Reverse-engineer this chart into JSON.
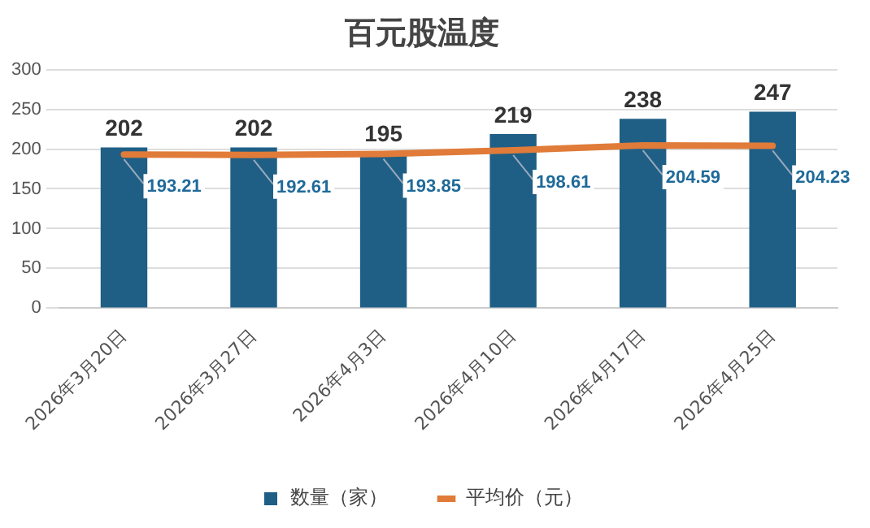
{
  "chart_data": {
    "type": "bar",
    "title": "百元股温度",
    "categories": [
      "2026年3月20日",
      "2026年3月27日",
      "2026年4月3日",
      "2026年4月10日",
      "2026年4月17日",
      "2026年4月25日"
    ],
    "series": [
      {
        "name": "数量（家）",
        "color": "#1f5f86",
        "values": [
          202,
          202,
          195,
          219,
          238,
          247
        ]
      },
      {
        "name": "平均价（元）",
        "type": "line",
        "color": "#e07b39",
        "values": [
          193.21,
          192.61,
          193.85,
          198.61,
          204.59,
          204.23
        ]
      }
    ],
    "ylim": [
      0,
      300
    ],
    "yticks": [
      0,
      50,
      100,
      150,
      200,
      250,
      300
    ],
    "grid": "y",
    "legend": "bottom",
    "marker": "none",
    "data_labels": true
  }
}
